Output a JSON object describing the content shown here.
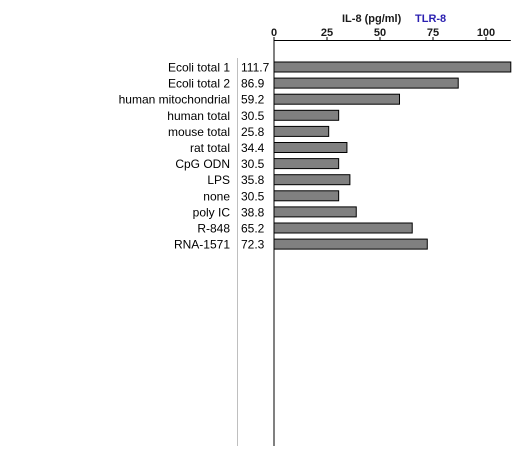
{
  "chart_data": {
    "type": "bar",
    "orientation": "horizontal",
    "title": "IL-8 (pg/ml)",
    "subtitle": "TLR-8",
    "categories": [
      "Ecoli total 1",
      "Ecoli total 2",
      "human mitochondrial",
      "human total",
      "mouse total",
      "rat total",
      "CpG ODN",
      "LPS",
      "none",
      "poly IC",
      "R-848",
      "RNA-1571"
    ],
    "values": [
      111.7,
      86.9,
      59.2,
      30.5,
      25.8,
      34.4,
      30.5,
      35.8,
      30.5,
      38.8,
      65.2,
      72.3
    ],
    "value_labels": [
      "111.7",
      "86.9",
      "59.2",
      "30.5",
      "25.8",
      "34.4",
      "30.5",
      "35.8",
      "30.5",
      "38.8",
      "65.2",
      "72.3"
    ],
    "xticks": [
      0,
      25,
      50,
      75,
      100
    ],
    "xtick_labels": [
      "0",
      "25",
      "50",
      "75",
      "100"
    ],
    "xlim": [
      0,
      111.7
    ],
    "axis_position": "top",
    "grid": false,
    "colors": {
      "bar_fill": "#808080",
      "bar_stroke": "#000000",
      "subtitle": "#2a1fb0",
      "divider": "#bfbfbf"
    }
  }
}
